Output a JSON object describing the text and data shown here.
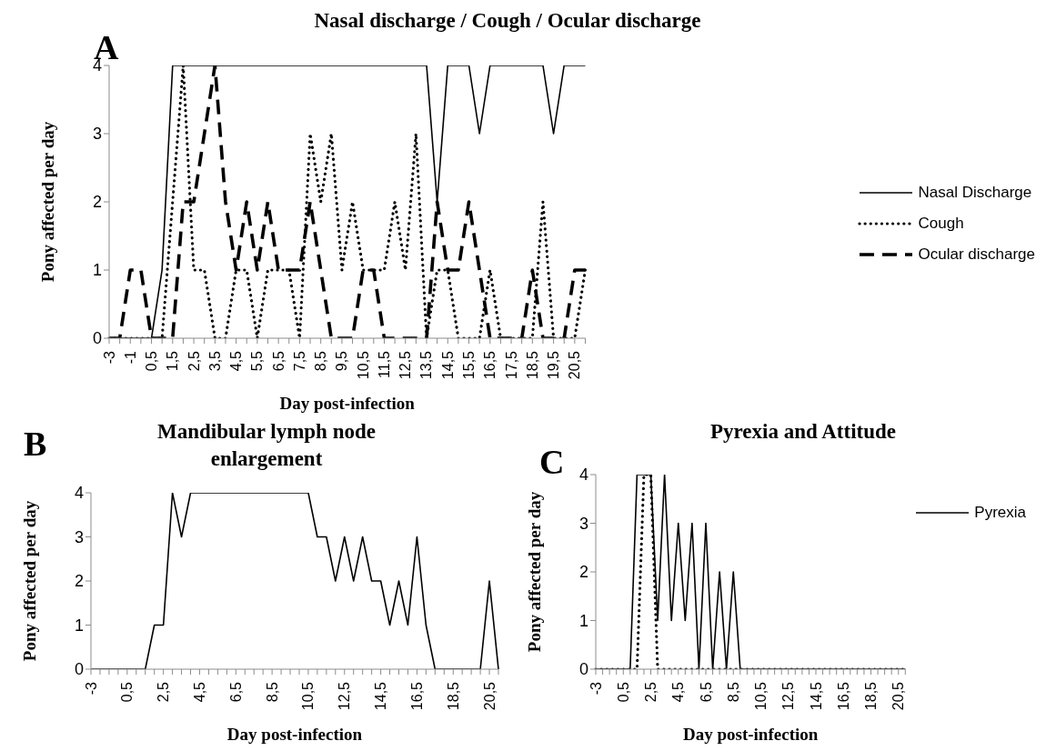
{
  "chart_data": [
    {
      "type": "line",
      "title": "Nasal discharge / Cough / Ocular discharge",
      "annotations": [
        "A"
      ],
      "xlabel": "Day post-infection",
      "ylabel": "Pony affected per day",
      "categories": [
        "-3",
        null,
        "-1",
        null,
        "0,5",
        null,
        "1,5",
        null,
        "2,5",
        null,
        "3,5",
        null,
        "4,5",
        null,
        "5,5",
        null,
        "6,5",
        null,
        "7,5",
        null,
        "8,5",
        null,
        "9,5",
        null,
        "10,5",
        null,
        "11,5",
        null,
        "12,5",
        null,
        "13,5",
        null,
        "14,5",
        null,
        "15,5",
        null,
        "16,5",
        null,
        "17,5",
        null,
        "18,5",
        null,
        "19,5",
        null,
        "20,5",
        null
      ],
      "series": [
        {
          "name": "Nasal Discharge",
          "color": "#000000",
          "line_style": "solid",
          "values": [
            0,
            0,
            0,
            0,
            0,
            1,
            4,
            4,
            4,
            4,
            4,
            4,
            4,
            4,
            4,
            4,
            4,
            4,
            4,
            4,
            4,
            4,
            4,
            4,
            4,
            4,
            4,
            4,
            4,
            4,
            4,
            2,
            4,
            4,
            4,
            3,
            4,
            4,
            4,
            4,
            4,
            4,
            3,
            4,
            4,
            4
          ]
        },
        {
          "name": "Cough",
          "color": "#000000",
          "line_style": "dotted",
          "values": [
            0,
            0,
            0,
            0,
            0,
            0,
            2,
            4,
            1,
            1,
            0,
            0,
            1,
            1,
            0,
            1,
            1,
            1,
            0,
            3,
            2,
            3,
            1,
            2,
            1,
            1,
            1,
            2,
            1,
            3,
            0,
            1,
            1,
            0,
            0,
            0,
            1,
            0,
            0,
            0,
            0,
            2,
            0,
            0,
            0,
            1
          ]
        },
        {
          "name": "Ocular discharge",
          "color": "#000000",
          "line_style": "dashed",
          "values": [
            0,
            0,
            1,
            1,
            0,
            0,
            0,
            2,
            2,
            3,
            4,
            2,
            1,
            2,
            1,
            2,
            1,
            1,
            1,
            2,
            1,
            0,
            0,
            0,
            1,
            1,
            0,
            0,
            0,
            0,
            0,
            2,
            1,
            1,
            2,
            1,
            0,
            0,
            0,
            0,
            1,
            0,
            0,
            0,
            1,
            1
          ]
        }
      ],
      "ylim": [
        0,
        4
      ],
      "yticks": [
        0,
        1,
        2,
        3,
        4
      ],
      "legend": "right"
    },
    {
      "type": "line",
      "title": "Mandibular lymph node enlargement",
      "annotations": [
        "B"
      ],
      "xlabel": "Day post-infection",
      "ylabel": "Pony affected per day",
      "categories": [
        "-3",
        null,
        null,
        null,
        "0,5",
        null,
        null,
        null,
        "2,5",
        null,
        null,
        null,
        "4,5",
        null,
        null,
        null,
        "6,5",
        null,
        null,
        null,
        "8,5",
        null,
        null,
        null,
        "10,5",
        null,
        null,
        null,
        "12,5",
        null,
        null,
        null,
        "14,5",
        null,
        null,
        null,
        "16,5",
        null,
        null,
        null,
        "18,5",
        null,
        null,
        null,
        "20,5",
        null
      ],
      "series": [
        {
          "color": "#000000",
          "line_style": "solid",
          "values": [
            0,
            0,
            0,
            0,
            0,
            0,
            0,
            1,
            1,
            4,
            3,
            4,
            4,
            4,
            4,
            4,
            4,
            4,
            4,
            4,
            4,
            4,
            4,
            4,
            4,
            3,
            3,
            2,
            3,
            2,
            3,
            2,
            2,
            1,
            2,
            1,
            3,
            1,
            0,
            0,
            0,
            0,
            0,
            0,
            2,
            0
          ]
        }
      ],
      "ylim": [
        0,
        4
      ],
      "yticks": [
        0,
        1,
        2,
        3,
        4
      ]
    },
    {
      "type": "line",
      "title": "Pyrexia and Attitude",
      "annotations": [
        "C"
      ],
      "xlabel": "Day post-infection",
      "ylabel": "Pony affected per day",
      "categories": [
        "-3",
        null,
        null,
        null,
        "0,5",
        null,
        null,
        null,
        "2,5",
        null,
        null,
        null,
        "4,5",
        null,
        null,
        null,
        "6,5",
        null,
        null,
        null,
        "8,5",
        null,
        null,
        null,
        "10,5",
        null,
        null,
        null,
        "12,5",
        null,
        null,
        null,
        "14,5",
        null,
        null,
        null,
        "16,5",
        null,
        null,
        null,
        "18,5",
        null,
        null,
        null,
        "20,5",
        null
      ],
      "series": [
        {
          "name": "Pyrexia",
          "color": "#000000",
          "line_style": "solid",
          "values": [
            0,
            0,
            0,
            0,
            0,
            0,
            4,
            4,
            4,
            1,
            4,
            1,
            3,
            1,
            3,
            0,
            3,
            0,
            2,
            0,
            2,
            0,
            0,
            0,
            0,
            0,
            0,
            0,
            0,
            0,
            0,
            0,
            0,
            0,
            0,
            0,
            0,
            0,
            0,
            0,
            0,
            0,
            0,
            0,
            0,
            0
          ]
        },
        {
          "color": "#000000",
          "line_style": "dotted",
          "values": [
            0,
            0,
            0,
            0,
            0,
            0,
            0,
            4,
            4,
            0,
            0,
            0,
            0,
            0,
            0,
            0,
            0,
            0,
            0,
            0,
            0,
            0,
            0,
            0,
            0,
            0,
            0,
            0,
            0,
            0,
            0,
            0,
            0,
            0,
            0,
            0,
            0,
            0,
            0,
            0,
            0,
            0,
            0,
            0,
            0,
            0
          ]
        }
      ],
      "ylim": [
        0,
        4
      ],
      "yticks": [
        0,
        1,
        2,
        3,
        4
      ],
      "legend": "top right"
    }
  ]
}
